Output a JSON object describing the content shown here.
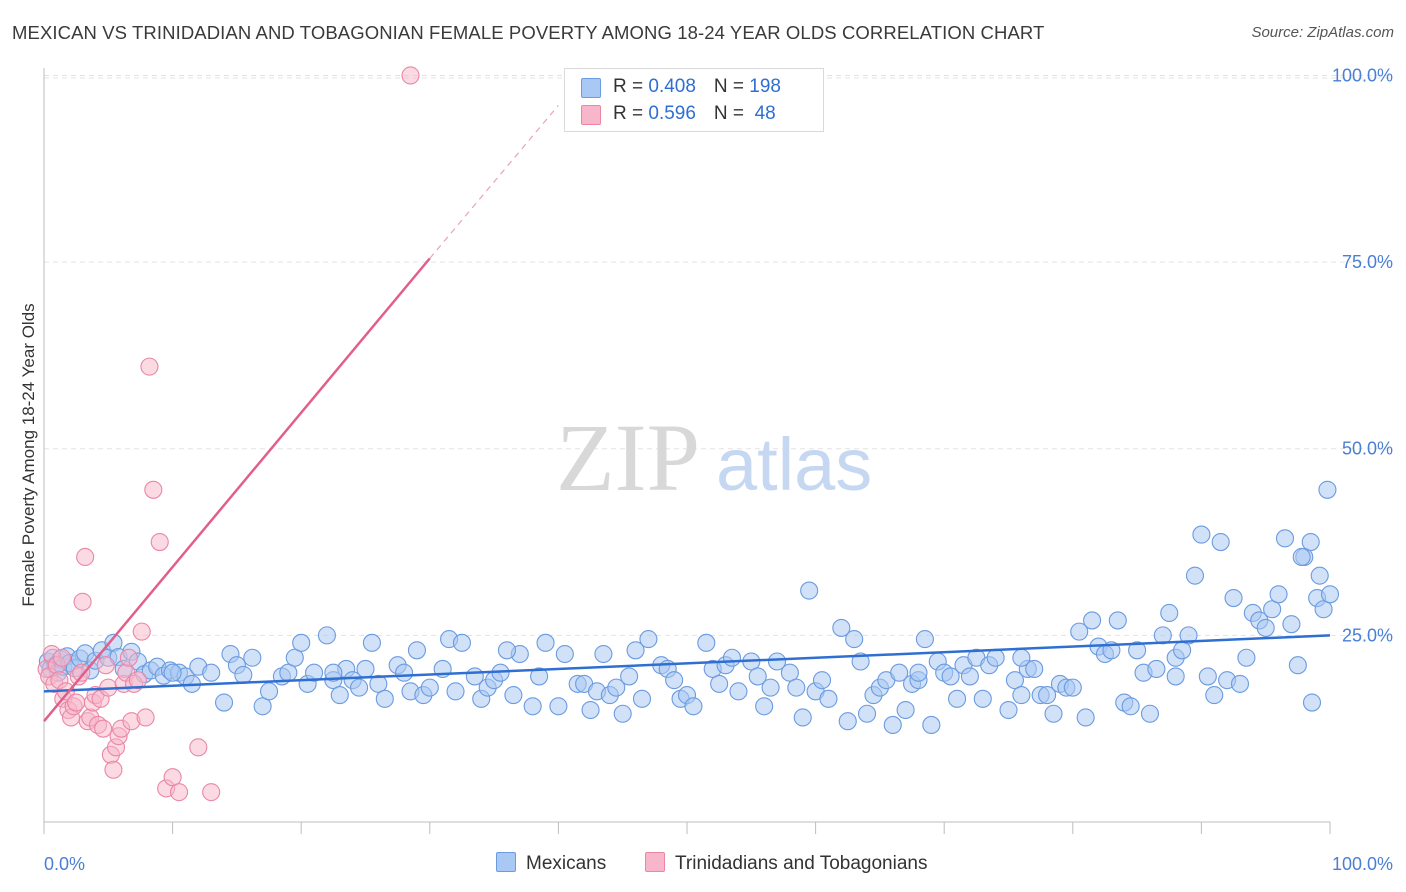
{
  "title": "MEXICAN VS TRINIDADIAN AND TOBAGONIAN FEMALE POVERTY AMONG 18-24 YEAR OLDS CORRELATION CHART",
  "source": "Source: ZipAtlas.com",
  "watermark": {
    "zip": "ZIP",
    "atlas": "atlas"
  },
  "legend": {
    "rows": [
      {
        "r_label": "R = ",
        "r_value": "0.408",
        "n_label": "N = ",
        "n_value": "198"
      },
      {
        "r_label": "R = ",
        "r_value": "0.596",
        "n_label": "N = ",
        "n_value": " 48"
      }
    ],
    "bottom": [
      "Mexicans",
      "Trinidadians and Tobagonians"
    ]
  },
  "colors": {
    "mexicans_fill": "#a9c8f3",
    "mexicans_stroke": "#6b9be0",
    "mexicans_line": "#2f6fd1",
    "tt_fill": "#f7b6c9",
    "tt_stroke": "#ea87a6",
    "tt_line": "#e0608a",
    "tick_label": "#4a7fd4",
    "grid": "#e3e3e3"
  },
  "chart_data": {
    "type": "scatter",
    "title": "MEXICAN VS TRINIDADIAN AND TOBAGONIAN FEMALE POVERTY AMONG 18-24 YEAR OLDS CORRELATION CHART",
    "xlabel": "",
    "ylabel": "Female Poverty Among 18-24 Year Olds",
    "xlim": [
      0,
      100
    ],
    "ylim": [
      0,
      101
    ],
    "x_tick_labels": [
      "0.0%",
      "100.0%"
    ],
    "y_ticks": [
      25,
      50,
      75,
      100
    ],
    "y_tick_labels": [
      "25.0%",
      "50.0%",
      "75.0%",
      "100.0%"
    ],
    "grid": true,
    "legend_position": "top-center",
    "series": [
      {
        "name": "Mexicans",
        "R": 0.408,
        "N": 198,
        "trend": {
          "x0": 0,
          "y0": 17.5,
          "x1": 100,
          "y1": 25.0
        },
        "points": [
          [
            0.3,
            21.5
          ],
          [
            0.5,
            20.5
          ],
          [
            0.7,
            22.0
          ],
          [
            0.9,
            21.0
          ],
          [
            1.1,
            20.0
          ],
          [
            1.3,
            21.8
          ],
          [
            1.5,
            20.8
          ],
          [
            1.8,
            22.2
          ],
          [
            2.0,
            21.3
          ],
          [
            2.4,
            20.6
          ],
          [
            2.8,
            21.9
          ],
          [
            3.2,
            22.6
          ],
          [
            3.6,
            20.3
          ],
          [
            4.0,
            21.6
          ],
          [
            4.5,
            23.0
          ],
          [
            5.0,
            22.0
          ],
          [
            5.4,
            24.0
          ],
          [
            5.8,
            22.1
          ],
          [
            6.2,
            20.5
          ],
          [
            6.8,
            22.8
          ],
          [
            7.3,
            21.5
          ],
          [
            7.8,
            19.8
          ],
          [
            8.3,
            20.3
          ],
          [
            8.8,
            20.8
          ],
          [
            9.3,
            19.6
          ],
          [
            9.8,
            20.3
          ],
          [
            10.5,
            20.0
          ],
          [
            11.0,
            19.5
          ],
          [
            11.5,
            18.5
          ],
          [
            12.0,
            20.8
          ],
          [
            13.0,
            20.0
          ],
          [
            14.0,
            16.0
          ],
          [
            14.5,
            22.5
          ],
          [
            15.0,
            21.0
          ],
          [
            15.5,
            19.7
          ],
          [
            16.2,
            22.0
          ],
          [
            17.0,
            15.5
          ],
          [
            17.5,
            17.5
          ],
          [
            18.5,
            19.5
          ],
          [
            19.0,
            20.0
          ],
          [
            19.5,
            22.0
          ],
          [
            20.0,
            24.0
          ],
          [
            20.5,
            18.5
          ],
          [
            21.0,
            20.0
          ],
          [
            22.0,
            25.0
          ],
          [
            22.5,
            19.0
          ],
          [
            23.0,
            17.0
          ],
          [
            23.5,
            20.5
          ],
          [
            24.0,
            19.0
          ],
          [
            24.5,
            18.0
          ],
          [
            25.0,
            20.5
          ],
          [
            25.5,
            24.0
          ],
          [
            26.0,
            18.5
          ],
          [
            26.5,
            16.5
          ],
          [
            27.5,
            21.0
          ],
          [
            28.0,
            20.0
          ],
          [
            28.5,
            17.5
          ],
          [
            29.0,
            23.0
          ],
          [
            29.5,
            17.0
          ],
          [
            30.0,
            18.0
          ],
          [
            31.0,
            20.5
          ],
          [
            31.5,
            24.5
          ],
          [
            32.0,
            17.5
          ],
          [
            32.5,
            24.0
          ],
          [
            33.5,
            19.5
          ],
          [
            34.0,
            16.5
          ],
          [
            34.5,
            18.0
          ],
          [
            35.0,
            19.0
          ],
          [
            35.5,
            20.0
          ],
          [
            36.5,
            17.0
          ],
          [
            37.0,
            22.5
          ],
          [
            38.0,
            15.5
          ],
          [
            38.5,
            19.5
          ],
          [
            39.0,
            24.0
          ],
          [
            40.0,
            15.5
          ],
          [
            40.5,
            22.5
          ],
          [
            41.5,
            18.5
          ],
          [
            42.0,
            18.5
          ],
          [
            42.5,
            15.0
          ],
          [
            43.0,
            17.5
          ],
          [
            43.5,
            22.5
          ],
          [
            44.0,
            17.0
          ],
          [
            44.5,
            18.0
          ],
          [
            45.0,
            14.5
          ],
          [
            46.0,
            23.0
          ],
          [
            46.5,
            16.5
          ],
          [
            47.0,
            24.5
          ],
          [
            48.0,
            21.0
          ],
          [
            48.5,
            20.5
          ],
          [
            49.0,
            19.0
          ],
          [
            49.5,
            16.5
          ],
          [
            50.0,
            17.0
          ],
          [
            50.5,
            15.5
          ],
          [
            51.5,
            24.0
          ],
          [
            52.0,
            20.5
          ],
          [
            52.5,
            18.5
          ],
          [
            53.0,
            21.0
          ],
          [
            53.5,
            22.0
          ],
          [
            54.0,
            17.5
          ],
          [
            55.0,
            21.5
          ],
          [
            55.5,
            19.5
          ],
          [
            56.0,
            15.5
          ],
          [
            56.5,
            18.0
          ],
          [
            57.0,
            21.5
          ],
          [
            58.0,
            20.0
          ],
          [
            58.5,
            18.0
          ],
          [
            59.0,
            14.0
          ],
          [
            59.5,
            31.0
          ],
          [
            60.0,
            17.5
          ],
          [
            60.5,
            19.0
          ],
          [
            61.0,
            16.5
          ],
          [
            62.0,
            26.0
          ],
          [
            62.5,
            13.5
          ],
          [
            63.0,
            24.5
          ],
          [
            63.5,
            21.5
          ],
          [
            64.0,
            14.5
          ],
          [
            64.5,
            17.0
          ],
          [
            65.0,
            18.0
          ],
          [
            65.5,
            19.0
          ],
          [
            66.0,
            13.0
          ],
          [
            66.5,
            20.0
          ],
          [
            67.0,
            15.0
          ],
          [
            67.5,
            18.5
          ],
          [
            68.0,
            19.0
          ],
          [
            68.5,
            24.5
          ],
          [
            69.0,
            13.0
          ],
          [
            69.5,
            21.5
          ],
          [
            70.0,
            20.0
          ],
          [
            70.5,
            19.5
          ],
          [
            71.0,
            16.5
          ],
          [
            71.5,
            21.0
          ],
          [
            72.0,
            19.5
          ],
          [
            72.5,
            22.0
          ],
          [
            73.0,
            16.5
          ],
          [
            73.5,
            21.0
          ],
          [
            74.0,
            22.0
          ],
          [
            75.0,
            15.0
          ],
          [
            75.5,
            19.0
          ],
          [
            76.0,
            17.0
          ],
          [
            76.5,
            20.5
          ],
          [
            77.0,
            20.5
          ],
          [
            77.5,
            17.0
          ],
          [
            78.0,
            17.0
          ],
          [
            78.5,
            14.5
          ],
          [
            79.0,
            18.5
          ],
          [
            79.5,
            18.0
          ],
          [
            80.0,
            18.0
          ],
          [
            80.5,
            25.5
          ],
          [
            81.0,
            14.0
          ],
          [
            81.5,
            27.0
          ],
          [
            82.0,
            23.5
          ],
          [
            82.5,
            22.5
          ],
          [
            83.0,
            23.0
          ],
          [
            83.5,
            27.0
          ],
          [
            84.0,
            16.0
          ],
          [
            84.5,
            15.5
          ],
          [
            85.0,
            23.0
          ],
          [
            85.5,
            20.0
          ],
          [
            86.0,
            14.5
          ],
          [
            86.5,
            20.5
          ],
          [
            87.0,
            25.0
          ],
          [
            87.5,
            28.0
          ],
          [
            88.0,
            22.0
          ],
          [
            88.5,
            23.0
          ],
          [
            89.0,
            25.0
          ],
          [
            89.5,
            33.0
          ],
          [
            90.0,
            38.5
          ],
          [
            90.5,
            19.5
          ],
          [
            91.0,
            17.0
          ],
          [
            91.5,
            37.5
          ],
          [
            92.0,
            19.0
          ],
          [
            92.5,
            30.0
          ],
          [
            93.0,
            18.5
          ],
          [
            93.5,
            22.0
          ],
          [
            94.0,
            28.0
          ],
          [
            94.5,
            27.0
          ],
          [
            95.0,
            26.0
          ],
          [
            95.5,
            28.5
          ],
          [
            96.0,
            30.5
          ],
          [
            96.5,
            38.0
          ],
          [
            97.0,
            26.5
          ],
          [
            97.5,
            21.0
          ],
          [
            98.0,
            35.5
          ],
          [
            98.5,
            37.5
          ],
          [
            99.0,
            30.0
          ],
          [
            99.5,
            28.5
          ],
          [
            100.0,
            30.5
          ],
          [
            97.8,
            35.5
          ],
          [
            98.6,
            16.0
          ],
          [
            99.2,
            33.0
          ],
          [
            99.8,
            44.5
          ],
          [
            10.0,
            20.0
          ],
          [
            22.5,
            20.0
          ],
          [
            36.0,
            23.0
          ],
          [
            45.5,
            19.5
          ],
          [
            68.0,
            20.0
          ],
          [
            76.0,
            22.0
          ],
          [
            88.0,
            19.5
          ]
        ]
      },
      {
        "name": "Trinidadians and Tobagonians",
        "R": 0.596,
        "N": 48,
        "trend": {
          "x0": 0,
          "y0": 13.5,
          "x1": 30,
          "y1": 75.5,
          "dash_to_x": 40,
          "dash_to_y": 96.0
        },
        "points": [
          [
            0.2,
            20.5
          ],
          [
            0.4,
            19.5
          ],
          [
            0.6,
            22.5
          ],
          [
            0.8,
            18.5
          ],
          [
            1.0,
            21.0
          ],
          [
            1.2,
            19.0
          ],
          [
            1.4,
            22.0
          ],
          [
            1.5,
            16.5
          ],
          [
            1.7,
            17.5
          ],
          [
            1.9,
            15.0
          ],
          [
            2.1,
            14.0
          ],
          [
            2.3,
            15.5
          ],
          [
            2.5,
            16.0
          ],
          [
            2.7,
            19.5
          ],
          [
            2.9,
            20.0
          ],
          [
            3.0,
            29.5
          ],
          [
            3.2,
            35.5
          ],
          [
            3.4,
            13.5
          ],
          [
            3.6,
            14.0
          ],
          [
            3.8,
            16.0
          ],
          [
            4.0,
            17.0
          ],
          [
            4.2,
            13.0
          ],
          [
            4.4,
            16.5
          ],
          [
            4.6,
            12.5
          ],
          [
            4.8,
            21.0
          ],
          [
            5.0,
            18.0
          ],
          [
            5.2,
            9.0
          ],
          [
            5.4,
            7.0
          ],
          [
            5.6,
            10.0
          ],
          [
            5.8,
            11.5
          ],
          [
            6.0,
            12.5
          ],
          [
            6.2,
            18.5
          ],
          [
            6.4,
            20.0
          ],
          [
            6.6,
            22.0
          ],
          [
            6.8,
            13.5
          ],
          [
            7.0,
            18.5
          ],
          [
            7.3,
            19.0
          ],
          [
            7.6,
            25.5
          ],
          [
            7.9,
            14.0
          ],
          [
            8.2,
            61.0
          ],
          [
            8.5,
            44.5
          ],
          [
            9.0,
            37.5
          ],
          [
            9.5,
            4.5
          ],
          [
            10.0,
            6.0
          ],
          [
            10.5,
            4.0
          ],
          [
            12.0,
            10.0
          ],
          [
            13.0,
            4.0
          ],
          [
            28.5,
            100.0
          ]
        ]
      }
    ]
  }
}
